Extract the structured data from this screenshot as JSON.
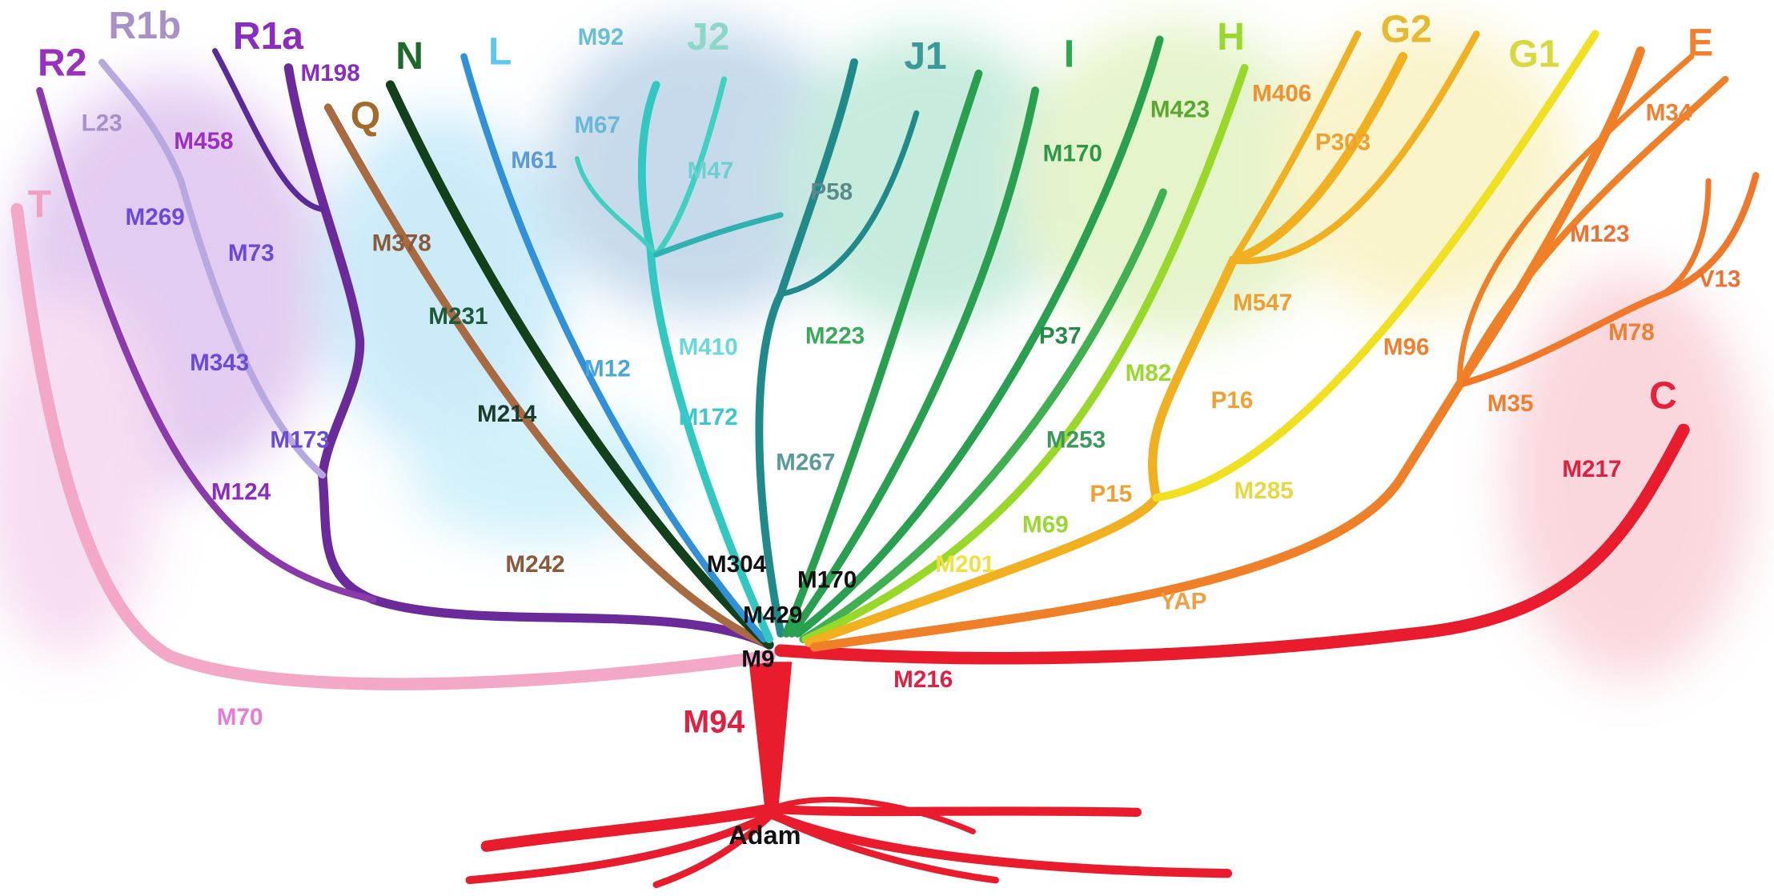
{
  "root": "Adam",
  "haplogroups": [
    "T",
    "R2",
    "R1b",
    "R1a",
    "Q",
    "N",
    "L",
    "J2",
    "J1",
    "I",
    "H",
    "G2",
    "G1",
    "E",
    "C"
  ],
  "markers": [
    "M198",
    "L23",
    "M458",
    "M269",
    "M73",
    "M343",
    "M173",
    "M124",
    "M70",
    "M378",
    "M231",
    "M214",
    "M242",
    "M61",
    "M92",
    "M67",
    "M47",
    "M12",
    "M410",
    "M172",
    "P58",
    "M223",
    "M267",
    "M304",
    "M170",
    "M429",
    "M9",
    "M170",
    "M423",
    "P37",
    "M253",
    "M82",
    "M69",
    "M406",
    "P303",
    "M547",
    "P16",
    "P15",
    "M285",
    "M201",
    "YAP",
    "M34",
    "M123",
    "V13",
    "M96",
    "M78",
    "M35",
    "M217",
    "M216",
    "M94"
  ]
}
